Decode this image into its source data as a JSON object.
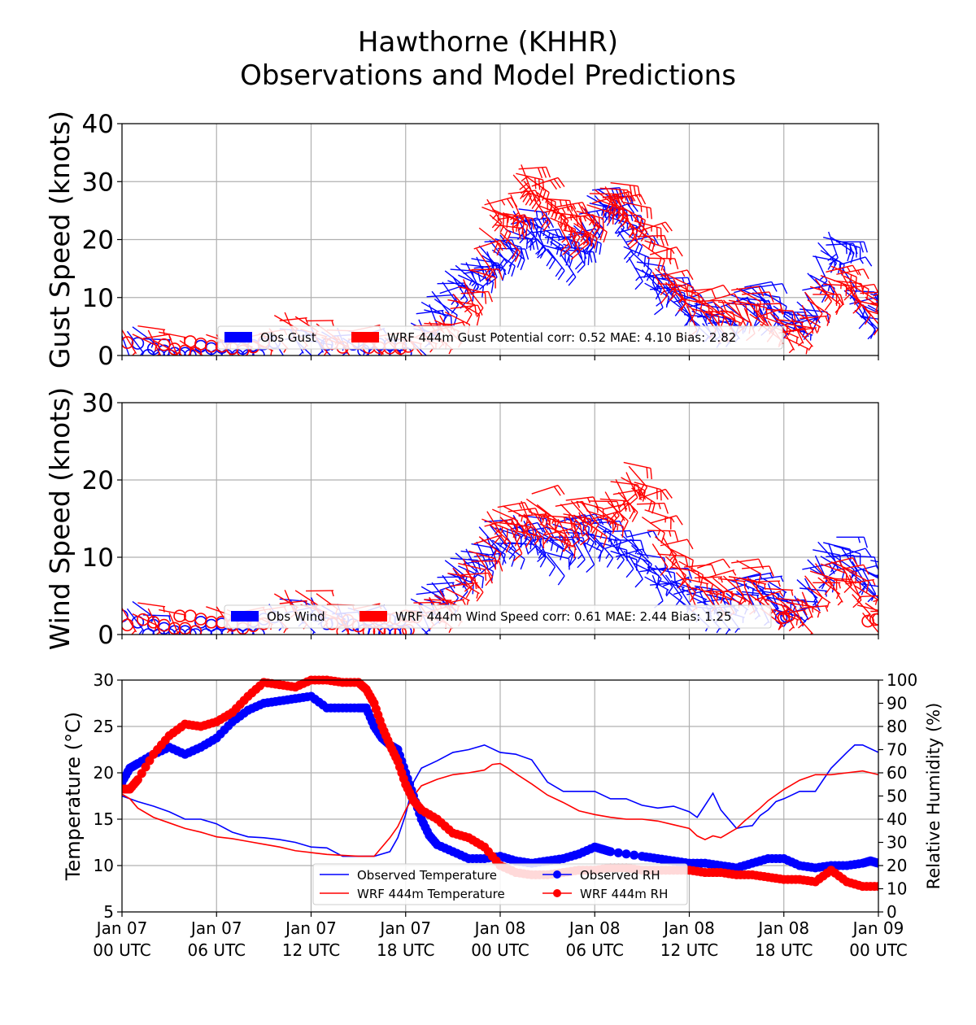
{
  "title_line1": "Hawthorne (KHHR)",
  "title_line2": "Observations and Model Predictions",
  "colors": {
    "obs": "#0000ff",
    "model": "#ff0000",
    "grid": "#b0b0b0"
  },
  "x_ticks": [
    {
      "hour": 0,
      "line1": "Jan 07",
      "line2": "00 UTC"
    },
    {
      "hour": 6,
      "line1": "Jan 07",
      "line2": "06 UTC"
    },
    {
      "hour": 12,
      "line1": "Jan 07",
      "line2": "12 UTC"
    },
    {
      "hour": 18,
      "line1": "Jan 07",
      "line2": "18 UTC"
    },
    {
      "hour": 24,
      "line1": "Jan 08",
      "line2": "00 UTC"
    },
    {
      "hour": 30,
      "line1": "Jan 08",
      "line2": "06 UTC"
    },
    {
      "hour": 36,
      "line1": "Jan 08",
      "line2": "12 UTC"
    },
    {
      "hour": 42,
      "line1": "Jan 08",
      "line2": "18 UTC"
    },
    {
      "hour": 48,
      "line1": "Jan 09",
      "line2": "00 UTC"
    }
  ],
  "chart_data": [
    {
      "type": "line",
      "ylabel": "Gust Speed (knots)",
      "ylim": [
        0,
        40
      ],
      "yticks": [
        0,
        10,
        20,
        30,
        40
      ],
      "xlim": [
        0,
        48
      ],
      "grid": true,
      "legend_placement": "bottom-center",
      "note": "series drawn as wind barbs; calm values as circles",
      "series": [
        {
          "name": "Obs Gust",
          "color": "#0000ff",
          "x": [
            0,
            2,
            4,
            6,
            8,
            10,
            12,
            14,
            16,
            18,
            19,
            20,
            21,
            22,
            23,
            24,
            25,
            26,
            27,
            28,
            29,
            30,
            31,
            32,
            33,
            34,
            35,
            36,
            37,
            38,
            39,
            40,
            41,
            42,
            43,
            44,
            45,
            46,
            47,
            48
          ],
          "values": [
            5,
            0,
            0,
            0,
            1,
            3,
            4,
            3,
            1,
            2,
            8,
            12,
            14,
            16,
            18,
            20,
            24,
            22,
            20,
            18,
            24,
            28,
            25,
            18,
            14,
            12,
            10,
            8,
            6,
            8,
            10,
            12,
            8,
            6,
            8,
            18,
            22,
            10,
            8,
            10
          ]
        },
        {
          "name": "WRF 444m Gust Potential corr: 0.52 MAE: 4.10 Bias: 2.82",
          "color": "#ff0000",
          "x": [
            0,
            2,
            4,
            6,
            8,
            10,
            12,
            14,
            16,
            18,
            19,
            20,
            21,
            22,
            23,
            24,
            25,
            26,
            27,
            28,
            29,
            30,
            31,
            32,
            33,
            34,
            35,
            36,
            37,
            38,
            39,
            40,
            41,
            42,
            43,
            44,
            45,
            46,
            47,
            48
          ],
          "values": [
            4,
            3,
            2,
            2,
            2,
            6,
            5,
            3,
            2,
            3,
            4,
            6,
            9,
            14,
            26,
            22,
            33,
            28,
            26,
            22,
            25,
            27,
            29,
            24,
            20,
            14,
            12,
            10,
            8,
            9,
            10,
            8,
            6,
            4,
            8,
            12,
            15,
            12,
            10,
            8
          ]
        }
      ]
    },
    {
      "type": "line",
      "ylabel": "Wind Speed (knots)",
      "ylim": [
        0,
        30
      ],
      "yticks": [
        0,
        10,
        20,
        30
      ],
      "xlim": [
        0,
        48
      ],
      "grid": true,
      "legend_placement": "bottom-center",
      "note": "series drawn as wind barbs; calm values as circles",
      "series": [
        {
          "name": "Obs Wind",
          "color": "#0000ff",
          "x": [
            0,
            2,
            4,
            6,
            8,
            10,
            12,
            14,
            16,
            18,
            19,
            20,
            21,
            22,
            23,
            24,
            25,
            26,
            27,
            28,
            29,
            30,
            31,
            32,
            33,
            34,
            35,
            36,
            37,
            38,
            39,
            40,
            41,
            42,
            43,
            44,
            45,
            46,
            47,
            48
          ],
          "values": [
            4,
            0,
            0,
            0,
            1,
            3,
            4,
            2,
            1,
            2,
            5,
            7,
            9,
            11,
            13,
            13,
            14,
            13,
            12,
            14,
            14,
            13,
            12,
            11,
            9,
            7,
            6,
            5,
            4,
            5,
            6,
            7,
            5,
            3,
            6,
            11,
            12,
            9,
            8,
            8
          ]
        },
        {
          "name": "WRF 444m Wind Speed corr: 0.61 MAE: 2.44 Bias: 1.25",
          "color": "#ff0000",
          "x": [
            0,
            2,
            4,
            6,
            8,
            10,
            12,
            14,
            16,
            18,
            19,
            20,
            21,
            22,
            23,
            24,
            25,
            26,
            27,
            28,
            29,
            30,
            31,
            32,
            33,
            34,
            35,
            36,
            37,
            38,
            39,
            40,
            41,
            42,
            43,
            44,
            45,
            46,
            47,
            48
          ],
          "values": [
            3,
            2,
            2,
            2,
            2,
            4,
            5,
            2,
            1,
            2,
            3,
            5,
            7,
            10,
            14,
            16,
            15,
            17,
            14,
            16,
            17,
            15,
            19,
            21,
            16,
            12,
            9,
            8,
            6,
            7,
            8,
            6,
            4,
            3,
            5,
            8,
            9,
            7,
            4,
            2
          ]
        }
      ]
    },
    {
      "type": "line",
      "ylabel": "Temperature (°C)",
      "ylabel_right": "Relative Humidity (%)",
      "ylim": [
        5,
        30
      ],
      "yticks": [
        5,
        10,
        15,
        20,
        25,
        30
      ],
      "ylim_right": [
        0,
        100
      ],
      "yticks_right": [
        0,
        10,
        20,
        30,
        40,
        50,
        60,
        70,
        80,
        90,
        100
      ],
      "xlim": [
        0,
        48
      ],
      "grid": true,
      "legend_placement": "bottom-center",
      "series": [
        {
          "name": "Observed Temperature",
          "color": "#0000ff",
          "axis": "left",
          "marker": "none",
          "x": [
            0,
            0.5,
            1,
            2,
            3,
            4,
            5,
            6,
            7,
            8,
            9,
            10,
            11,
            12,
            13,
            14,
            15,
            16,
            17,
            17.5,
            18,
            18.5,
            19,
            20,
            21,
            22,
            23,
            24,
            25,
            26,
            27,
            28,
            29,
            30,
            31,
            32,
            33,
            34,
            35,
            36,
            36.5,
            37,
            37.5,
            38,
            38.5,
            39,
            39.5,
            40,
            40.5,
            41,
            41.5,
            42,
            43,
            44,
            45,
            46,
            46.5,
            47,
            48
          ],
          "values": [
            17.5,
            17.2,
            16.9,
            16.4,
            15.8,
            15.0,
            15.0,
            14.5,
            13.6,
            13.1,
            13.0,
            12.8,
            12.5,
            12.0,
            11.9,
            11.0,
            11.0,
            11.0,
            11.5,
            13.0,
            15.5,
            19.0,
            20.5,
            21.3,
            22.2,
            22.5,
            23.0,
            22.2,
            22.0,
            21.4,
            19.0,
            18.0,
            18.0,
            18.0,
            17.2,
            17.2,
            16.5,
            16.2,
            16.4,
            15.8,
            15.2,
            16.5,
            17.8,
            16.0,
            15.0,
            14.0,
            14.2,
            14.3,
            15.4,
            16.0,
            16.9,
            17.2,
            18.0,
            18.0,
            20.5,
            22.2,
            23.0,
            23.0,
            22.2
          ]
        },
        {
          "name": "WRF 444m Temperature",
          "color": "#ff0000",
          "axis": "left",
          "marker": "none",
          "x": [
            0,
            0.5,
            1,
            2,
            3,
            4,
            5,
            6,
            7,
            8,
            9,
            10,
            11,
            12,
            13,
            14,
            15,
            16,
            17,
            17.5,
            18,
            18.5,
            19,
            20,
            21,
            22,
            23,
            23.5,
            24,
            24.5,
            25,
            26,
            27,
            28,
            29,
            30,
            31,
            32,
            33,
            34,
            35,
            36,
            36.5,
            37,
            37.5,
            38,
            38.5,
            39,
            39.5,
            40,
            40.5,
            41,
            42,
            43,
            44,
            45,
            46,
            47,
            48
          ],
          "values": [
            17.7,
            17.2,
            16.2,
            15.2,
            14.6,
            14.0,
            13.6,
            13.1,
            12.9,
            12.6,
            12.3,
            12.0,
            11.6,
            11.4,
            11.2,
            11.1,
            11.0,
            11.0,
            13.0,
            14.2,
            16.0,
            17.5,
            18.6,
            19.3,
            19.8,
            20.0,
            20.3,
            20.9,
            21.0,
            20.5,
            19.9,
            18.8,
            17.6,
            16.8,
            15.9,
            15.5,
            15.2,
            15.0,
            15.0,
            14.8,
            14.4,
            14.0,
            13.2,
            12.8,
            13.2,
            13.0,
            13.5,
            14.0,
            14.8,
            15.5,
            16.2,
            17.0,
            18.2,
            19.2,
            19.8,
            19.8,
            20.0,
            20.2,
            19.8
          ]
        },
        {
          "name": "Observed RH",
          "color": "#0000ff",
          "axis": "right",
          "marker": "circle",
          "x": [
            0,
            0.5,
            1,
            2,
            3,
            4,
            5,
            6,
            7,
            8,
            9,
            10,
            11,
            12,
            13,
            14,
            15,
            15.5,
            16,
            16.5,
            17,
            17.5,
            18,
            18.5,
            19,
            19.5,
            20,
            21,
            22,
            23,
            24,
            25,
            26,
            27,
            28,
            29,
            30,
            30.5,
            31,
            33,
            34,
            35,
            36,
            37,
            38,
            39,
            40,
            41,
            42,
            43,
            44,
            45,
            46,
            47,
            47.5,
            48
          ],
          "values": [
            56,
            62,
            64,
            68,
            71,
            68,
            71,
            75,
            82,
            87,
            90,
            91,
            92,
            93,
            88,
            88,
            88,
            88,
            80,
            75,
            72,
            70,
            60,
            50,
            40,
            33,
            29,
            26,
            23,
            23,
            24,
            22,
            21,
            22,
            23,
            25,
            28,
            27,
            26,
            24,
            23,
            22,
            21,
            21,
            20,
            19,
            21,
            23,
            23,
            20,
            19,
            20,
            20,
            21,
            22,
            21
          ]
        },
        {
          "name": "WRF 444m RH",
          "color": "#ff0000",
          "axis": "right",
          "marker": "circle",
          "x": [
            0,
            0.5,
            1,
            2,
            3,
            4,
            5,
            6,
            7,
            8,
            9,
            10,
            11,
            12,
            13,
            14,
            15,
            15.5,
            16,
            16.5,
            17,
            17.5,
            18,
            18.5,
            19,
            20,
            21,
            22,
            23,
            24,
            25,
            26,
            27,
            28,
            29,
            30,
            31,
            32,
            33,
            34,
            35,
            36,
            37,
            38,
            39,
            40,
            41,
            42,
            43,
            44,
            45,
            46,
            47,
            48
          ],
          "values": [
            53,
            53,
            57,
            68,
            76,
            81,
            80,
            82,
            86,
            93,
            99,
            98,
            97,
            100,
            100,
            99,
            99,
            96,
            90,
            80,
            72,
            65,
            55,
            48,
            44,
            40,
            34,
            32,
            28,
            20,
            17,
            16,
            16,
            17,
            18,
            18,
            19,
            19,
            18,
            18,
            18,
            18,
            17,
            17,
            16,
            16,
            15,
            14,
            14,
            13,
            18,
            13,
            11,
            11
          ]
        }
      ]
    }
  ]
}
